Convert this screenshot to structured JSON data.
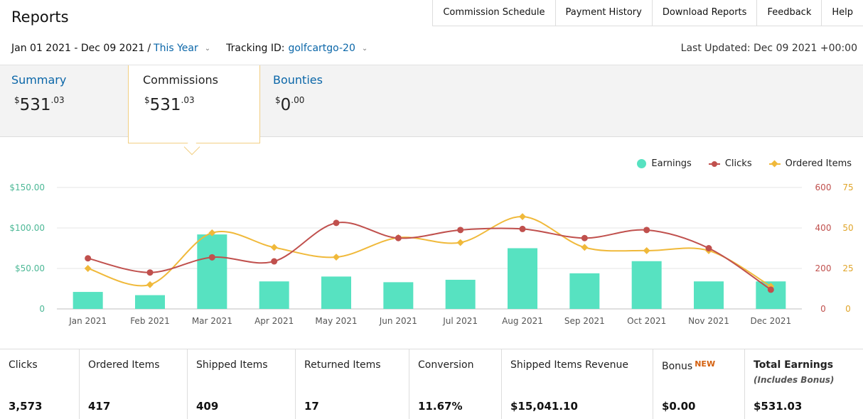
{
  "header": {
    "title": "Reports",
    "nav": [
      "Commission Schedule",
      "Payment History",
      "Download Reports",
      "Feedback",
      "Help"
    ]
  },
  "filters": {
    "date_range": "Jan 01 2021 - Dec 09 2021",
    "separator": "/",
    "period": "This Year",
    "tracking_label": "Tracking ID:",
    "tracking_id": "golfcartgo-20",
    "last_updated": "Last Updated: Dec 09 2021 +00:00"
  },
  "tabs": [
    {
      "label": "Summary",
      "currency": "$",
      "whole": "531",
      "cents": ".03"
    },
    {
      "label": "Commissions",
      "currency": "$",
      "whole": "531",
      "cents": ".03"
    },
    {
      "label": "Bounties",
      "currency": "$",
      "whole": "0",
      "cents": ".00"
    }
  ],
  "chart_data": {
    "type": "bar",
    "categories": [
      "Jan 2021",
      "Feb 2021",
      "Mar 2021",
      "Apr 2021",
      "May 2021",
      "Jun 2021",
      "Jul 2021",
      "Aug 2021",
      "Sep 2021",
      "Oct 2021",
      "Nov 2021",
      "Dec 2021"
    ],
    "series": [
      {
        "name": "Earnings",
        "type": "bar",
        "axis": "left",
        "color": "#57e2c1",
        "values": [
          21,
          17,
          92,
          34,
          40,
          33,
          36,
          75,
          44,
          59,
          34,
          34
        ]
      },
      {
        "name": "Clicks",
        "type": "line",
        "axis": "right-1",
        "color": "#c0504d",
        "values": [
          250,
          180,
          255,
          235,
          425,
          350,
          390,
          395,
          350,
          390,
          300,
          95
        ]
      },
      {
        "name": "Ordered Items",
        "type": "line",
        "axis": "right-2",
        "color": "#f0b93a",
        "values": [
          25,
          15,
          47,
          38,
          32,
          44,
          41,
          57,
          38,
          36,
          36,
          14
        ]
      }
    ],
    "y_left": {
      "ticks": [
        "0",
        "$50.00",
        "$100.00",
        "$150.00"
      ],
      "range": [
        0,
        150
      ]
    },
    "y_right_1": {
      "ticks": [
        "0",
        "200",
        "400",
        "600"
      ],
      "range": [
        0,
        600
      ]
    },
    "y_right_2": {
      "ticks": [
        "0",
        "25",
        "50",
        "75"
      ],
      "range": [
        0,
        75
      ]
    },
    "grid": true,
    "legend": "top-right"
  },
  "stats": [
    {
      "label": "Clicks",
      "value": "3,573"
    },
    {
      "label": "Ordered Items",
      "value": "417"
    },
    {
      "label": "Shipped Items",
      "value": "409"
    },
    {
      "label": "Returned Items",
      "value": "17"
    },
    {
      "label": "Conversion",
      "value": "11.67%"
    },
    {
      "label": "Shipped Items Revenue",
      "value": "$15,041.10"
    },
    {
      "label": "Bonus",
      "badge": "NEW",
      "value": "$0.00"
    },
    {
      "label": "Total Earnings",
      "note": "(Includes Bonus)",
      "value": "$531.03"
    }
  ],
  "icons": {
    "dropdown": "chevron-down-icon"
  }
}
